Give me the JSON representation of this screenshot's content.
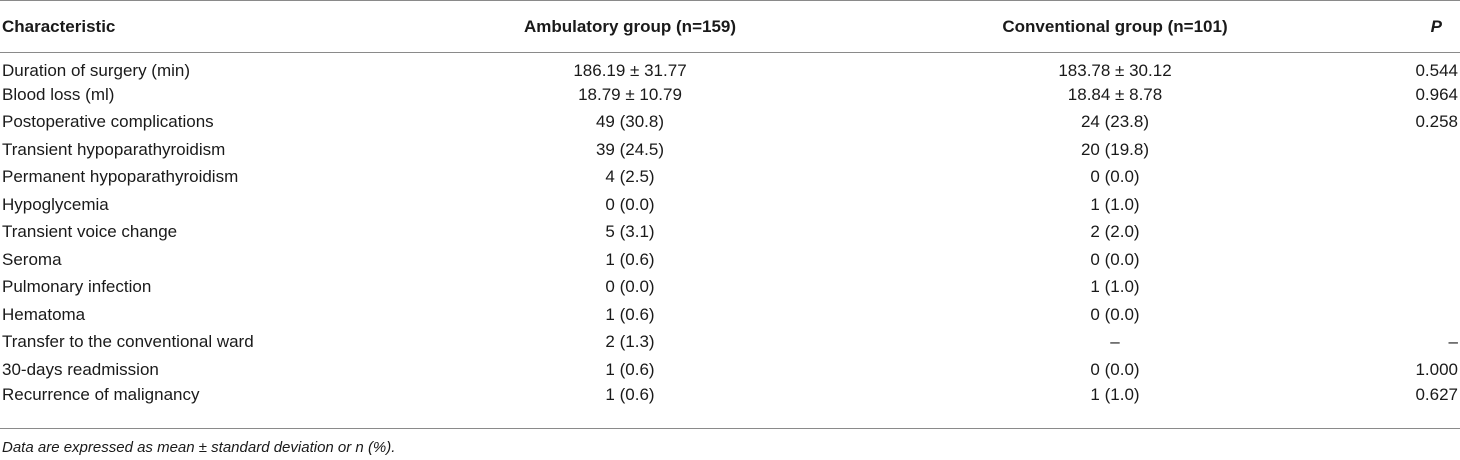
{
  "table": {
    "headers": {
      "characteristic": "Characteristic",
      "ambulatory": "Ambulatory group (n=159)",
      "conventional": "Conventional group (n=101)",
      "p": "P"
    },
    "rows": [
      {
        "characteristic": "Duration of surgery (min)",
        "ambulatory": "186.19 ± 31.77",
        "conventional": "183.78 ± 30.12",
        "p": "0.544"
      },
      {
        "characteristic": "Blood loss (ml)",
        "ambulatory": "18.79 ± 10.79",
        "conventional": "18.84 ± 8.78",
        "p": "0.964"
      },
      {
        "characteristic": "Postoperative complications",
        "ambulatory": "49 (30.8)",
        "conventional": "24 (23.8)",
        "p": "0.258"
      },
      {
        "characteristic": "Transient hypoparathyroidism",
        "ambulatory": "39 (24.5)",
        "conventional": "20 (19.8)",
        "p": ""
      },
      {
        "characteristic": "Permanent hypoparathyroidism",
        "ambulatory": "4 (2.5)",
        "conventional": "0 (0.0)",
        "p": ""
      },
      {
        "characteristic": "Hypoglycemia",
        "ambulatory": "0 (0.0)",
        "conventional": "1 (1.0)",
        "p": ""
      },
      {
        "characteristic": "Transient voice change",
        "ambulatory": "5 (3.1)",
        "conventional": "2 (2.0)",
        "p": ""
      },
      {
        "characteristic": "Seroma",
        "ambulatory": "1 (0.6)",
        "conventional": "0 (0.0)",
        "p": ""
      },
      {
        "characteristic": "Pulmonary infection",
        "ambulatory": "0 (0.0)",
        "conventional": "1 (1.0)",
        "p": ""
      },
      {
        "characteristic": "Hematoma",
        "ambulatory": "1 (0.6)",
        "conventional": "0 (0.0)",
        "p": ""
      },
      {
        "characteristic": "Transfer to the conventional ward",
        "ambulatory": "2 (1.3)",
        "conventional": "–",
        "p": "–"
      },
      {
        "characteristic": "30-days readmission",
        "ambulatory": "1 (0.6)",
        "conventional": "0 (0.0)",
        "p": "1.000"
      },
      {
        "characteristic": "Recurrence of malignancy",
        "ambulatory": "1 (0.6)",
        "conventional": "1 (1.0)",
        "p": "0.627"
      }
    ]
  },
  "footnote": "Data are expressed as mean ± standard deviation or n (%)."
}
